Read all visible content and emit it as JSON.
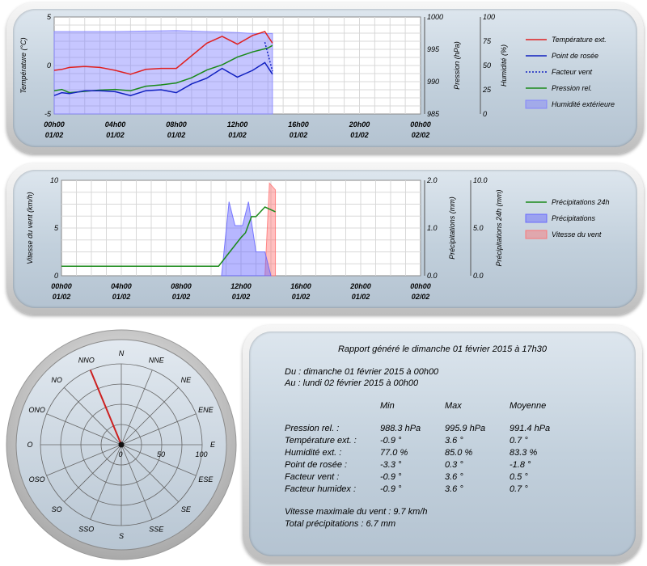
{
  "chart_data": [
    {
      "type": "line",
      "x_axis": {
        "ticks": [
          "00h00",
          "04h00",
          "08h00",
          "12h00",
          "16h00",
          "20h00",
          "00h00"
        ],
        "dates": [
          "01/02",
          "01/02",
          "01/02",
          "01/02",
          "01/02",
          "01/02",
          "02/02"
        ],
        "range_hours": [
          0,
          24
        ]
      },
      "axes": {
        "temperature": {
          "label": "Température (°C)",
          "range": [
            -5,
            5
          ],
          "ticks": [
            "5",
            "0",
            "-5"
          ]
        },
        "pressure": {
          "label": "Pression (hPa)",
          "range": [
            985,
            1000
          ],
          "ticks": [
            "1000",
            "995",
            "990",
            "985"
          ]
        },
        "humidity": {
          "label": "Humidité (%)",
          "range": [
            0,
            100
          ],
          "ticks": [
            "100",
            "75",
            "50",
            "25",
            "0"
          ]
        }
      },
      "grid": true,
      "legend_position": "right",
      "series": [
        {
          "name": "Humidité extérieure",
          "axis": "humidity",
          "style": "area",
          "color": "#8080ff",
          "x": [
            0,
            4,
            8,
            10,
            12,
            13,
            14.3
          ],
          "y": [
            85,
            85,
            86,
            85,
            84,
            83,
            83
          ]
        },
        {
          "name": "Pression rel.",
          "axis": "pressure",
          "style": "line",
          "color": "#1a8a1a",
          "x": [
            0,
            0.5,
            1,
            2,
            3,
            4,
            5,
            6,
            7,
            8,
            9,
            10,
            11,
            12,
            13,
            14,
            14.3
          ],
          "y": [
            988.6,
            988.8,
            988.3,
            988.5,
            988.7,
            988.8,
            988.6,
            989.3,
            989.5,
            989.8,
            990.6,
            991.8,
            992.6,
            993.8,
            994.6,
            995.2,
            995.6
          ]
        },
        {
          "name": "Facteur vent",
          "axis": "temperature",
          "style": "dotted",
          "color": "#1020c0",
          "x": [
            13.8,
            14.3
          ],
          "y": [
            2.4,
            -0.6
          ]
        },
        {
          "name": "Point de rosée",
          "axis": "temperature",
          "style": "line",
          "color": "#1020c0",
          "x": [
            0,
            0.5,
            1,
            2,
            3,
            4,
            5,
            6,
            7,
            8,
            9,
            10,
            11,
            12,
            13,
            13.8,
            14.3
          ],
          "y": [
            -3.1,
            -2.8,
            -2.9,
            -2.6,
            -2.6,
            -2.7,
            -3.1,
            -2.6,
            -2.5,
            -2.8,
            -1.9,
            -1.3,
            -0.3,
            -1.2,
            -0.5,
            0.3,
            -0.9
          ]
        },
        {
          "name": "Température ext.",
          "axis": "temperature",
          "style": "line",
          "color": "#e02020",
          "x": [
            0,
            0.5,
            1,
            2,
            3,
            4,
            5,
            6,
            7,
            8,
            9,
            10,
            11,
            12,
            13,
            13.8,
            14.3
          ],
          "y": [
            -0.5,
            -0.4,
            -0.2,
            -0.1,
            -0.2,
            -0.5,
            -0.9,
            -0.4,
            -0.3,
            -0.3,
            1.0,
            2.3,
            3.0,
            2.2,
            3.1,
            3.5,
            2.3
          ]
        }
      ]
    },
    {
      "type": "area",
      "x_axis": {
        "ticks": [
          "00h00",
          "04h00",
          "08h00",
          "12h00",
          "16h00",
          "20h00",
          "00h00"
        ],
        "dates": [
          "01/02",
          "01/02",
          "01/02",
          "01/02",
          "01/02",
          "01/02",
          "02/02"
        ],
        "range_hours": [
          0,
          24
        ]
      },
      "axes": {
        "wind": {
          "label": "Vitesse du vent (km/h)",
          "range": [
            0,
            10
          ],
          "ticks": [
            "10",
            "5",
            "0"
          ]
        },
        "precip": {
          "label": "Précipitations (mm)",
          "range": [
            0,
            2
          ],
          "ticks": [
            "2.0",
            "1.0",
            "0.0"
          ]
        },
        "precip24": {
          "label": "Précipitations 24h (mm)",
          "range": [
            0,
            10
          ],
          "ticks": [
            "10.0",
            "5.0",
            "0.0"
          ]
        }
      },
      "grid": true,
      "legend_position": "right",
      "series": [
        {
          "name": "Vitesse du vent",
          "axis": "wind",
          "style": "area",
          "color": "#ff7070",
          "x": [
            13.6,
            13.9,
            14.3,
            14.3
          ],
          "y": [
            0,
            9.7,
            9.0,
            0
          ]
        },
        {
          "name": "Précipitations",
          "axis": "precip",
          "style": "area",
          "color": "#6060ff",
          "x": [
            10.7,
            11.2,
            11.6,
            12.1,
            12.5,
            13.0,
            13.3,
            13.6,
            14.0
          ],
          "y": [
            0,
            1.55,
            1.05,
            1.05,
            1.55,
            0.5,
            0.5,
            0.5,
            0
          ]
        },
        {
          "name": "Précipitations 24h",
          "axis": "precip24",
          "style": "line",
          "color": "#1a8a1a",
          "x": [
            0,
            4,
            8,
            10.5,
            11,
            11.5,
            12,
            12.3,
            12.7,
            13,
            13.6,
            14.3
          ],
          "y": [
            1.0,
            1.0,
            1.0,
            1.0,
            2.0,
            3.0,
            4.0,
            4.5,
            6.2,
            6.2,
            7.2,
            6.7
          ]
        }
      ]
    }
  ],
  "wind_rose": {
    "directions": [
      "N",
      "NNE",
      "NE",
      "ENE",
      "E",
      "ESE",
      "SE",
      "SSE",
      "S",
      "SSO",
      "SO",
      "OSO",
      "O",
      "ONO",
      "NO",
      "NNO"
    ],
    "scale_labels": [
      "0",
      "50",
      "100"
    ],
    "max": 100,
    "highlighted_direction": "NNO",
    "highlighted_value": 100,
    "pointer_color": "#cc2020"
  },
  "report": {
    "title": "Rapport généré le dimanche 01 février 2015 à 17h30",
    "from": "Du : dimanche 01 février 2015 à 00h00",
    "to": "Au : lundi 02 février 2015 à 00h00",
    "columns": [
      "Min",
      "Max",
      "Moyenne"
    ],
    "rows": [
      {
        "label": "Pression rel. :",
        "min": "988.3 hPa",
        "max": "995.9 hPa",
        "avg": "991.4 hPa"
      },
      {
        "label": "Température ext. :",
        "min": "-0.9 °",
        "max": "3.6 °",
        "avg": "0.7 °"
      },
      {
        "label": "Humidité ext. :",
        "min": "77.0 %",
        "max": "85.0 %",
        "avg": "83.3 %"
      },
      {
        "label": "Point de rosée :",
        "min": "-3.3 °",
        "max": "0.3 °",
        "avg": "-1.8 °"
      },
      {
        "label": "Facteur vent :",
        "min": "-0.9 °",
        "max": "3.6 °",
        "avg": "0.5 °"
      },
      {
        "label": "Facteur humidex :",
        "min": "-0.9 °",
        "max": "3.6 °",
        "avg": "0.7 °"
      }
    ],
    "max_wind": "Vitesse maximale du vent : 9.7 km/h",
    "total_precip": "Total précipitations : 6.7 mm"
  }
}
